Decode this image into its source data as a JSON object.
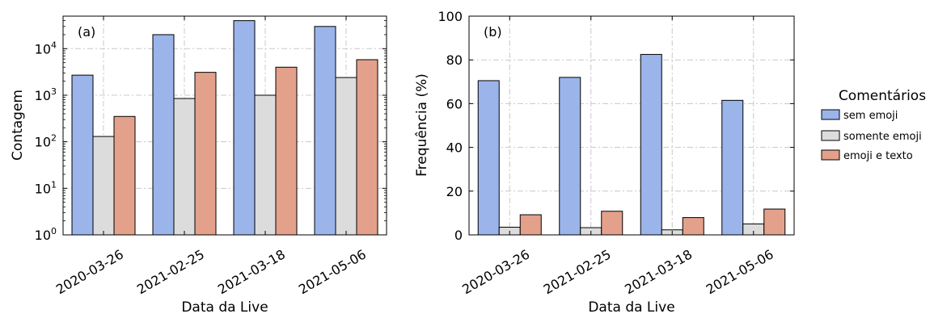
{
  "colors": {
    "sem_emoji": "#9bb4ea",
    "somente_emoji": "#dcdcdc",
    "emoji_e_texto": "#e3a18b",
    "grid": "#c8c8c8",
    "edge": "#000000"
  },
  "legend": {
    "title": "Comentários",
    "placement": "right",
    "items": [
      "sem emoji",
      "somente emoji",
      "emoji e texto"
    ]
  },
  "chart_data": [
    {
      "type": "bar",
      "panel_label": "(a)",
      "categories": [
        "2020-03-26",
        "2021-02-25",
        "2021-03-18",
        "2021-05-06"
      ],
      "series": [
        {
          "name": "sem emoji",
          "values": [
            2700,
            20000,
            40000,
            30000
          ]
        },
        {
          "name": "somente emoji",
          "values": [
            130,
            850,
            1000,
            2400
          ]
        },
        {
          "name": "emoji e texto",
          "values": [
            350,
            3100,
            4000,
            5800
          ]
        }
      ],
      "xlabel": "Data da Live",
      "ylabel": "Contagem",
      "yscale": "log",
      "ylim": [
        1,
        50000
      ],
      "yticks": [
        {
          "value": 1,
          "base": "10",
          "exp": "0"
        },
        {
          "value": 10,
          "base": "10",
          "exp": "1"
        },
        {
          "value": 100,
          "base": "10",
          "exp": "2"
        },
        {
          "value": 1000,
          "base": "10",
          "exp": "3"
        },
        {
          "value": 10000,
          "base": "10",
          "exp": "4"
        }
      ],
      "grid": true
    },
    {
      "type": "bar",
      "panel_label": "(b)",
      "categories": [
        "2020-03-26",
        "2021-02-25",
        "2021-03-18",
        "2021-05-06"
      ],
      "series": [
        {
          "name": "sem emoji",
          "values": [
            70.5,
            72.0,
            82.5,
            61.5
          ]
        },
        {
          "name": "somente emoji",
          "values": [
            3.5,
            3.3,
            2.3,
            5.0
          ]
        },
        {
          "name": "emoji e texto",
          "values": [
            9.2,
            10.8,
            7.9,
            11.8
          ]
        }
      ],
      "xlabel": "Data da Live",
      "ylabel": "Frequência (%)",
      "yscale": "linear",
      "ylim": [
        0,
        100
      ],
      "yticks": [
        {
          "value": 0,
          "label": "0"
        },
        {
          "value": 20,
          "label": "20"
        },
        {
          "value": 40,
          "label": "40"
        },
        {
          "value": 60,
          "label": "60"
        },
        {
          "value": 80,
          "label": "80"
        },
        {
          "value": 100,
          "label": "100"
        }
      ],
      "grid": true
    }
  ]
}
